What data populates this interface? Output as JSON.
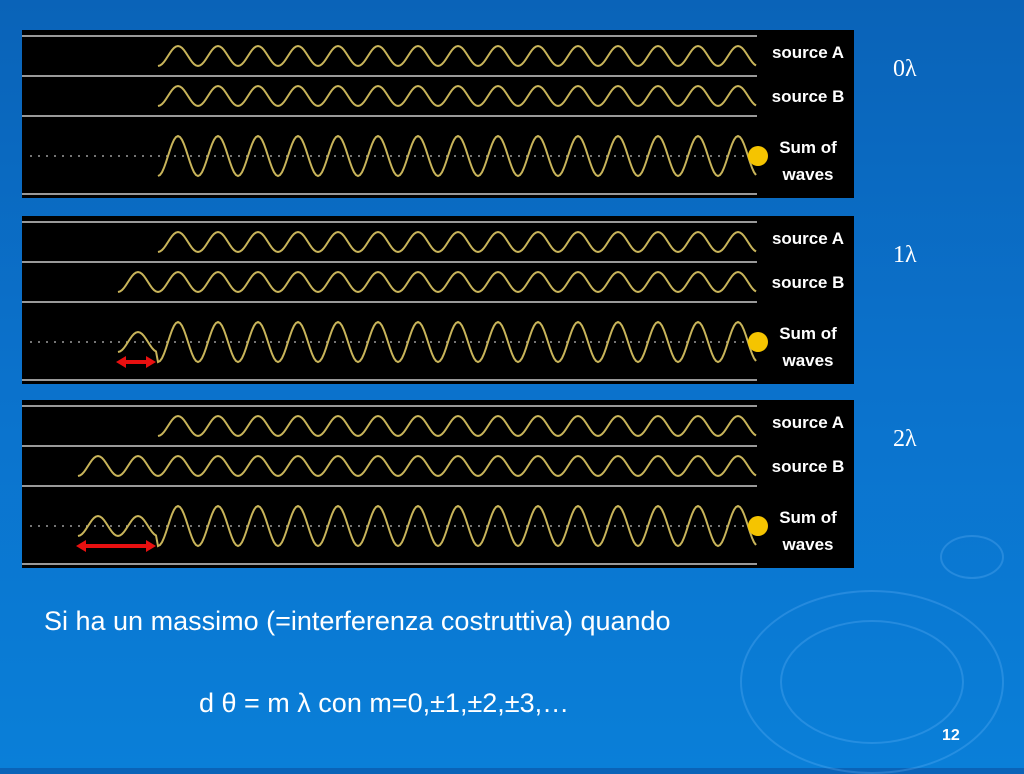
{
  "panels": [
    {
      "order_label": "0λ",
      "source_a": "source A",
      "source_b": "source B",
      "sum_line1": "Sum of",
      "sum_line2": "waves",
      "path_difference_wavelengths": 0
    },
    {
      "order_label": "1λ",
      "source_a": "source A",
      "source_b": "source B",
      "sum_line1": "Sum of",
      "sum_line2": "waves",
      "path_difference_wavelengths": 1
    },
    {
      "order_label": "2λ",
      "source_a": "source A",
      "source_b": "source B",
      "sum_line1": "Sum of",
      "sum_line2": "waves",
      "path_difference_wavelengths": 2
    }
  ],
  "text": {
    "line1": "Si ha un massimo (=interferenza costruttiva) quando",
    "line2": "d θ = m λ  con m=0,±1,±2,±3,…"
  },
  "page_number": "12",
  "colors": {
    "wave": "#c8b45a",
    "dot": "#f5c400",
    "arrow": "#e81010",
    "background": "#0b6fc8"
  }
}
